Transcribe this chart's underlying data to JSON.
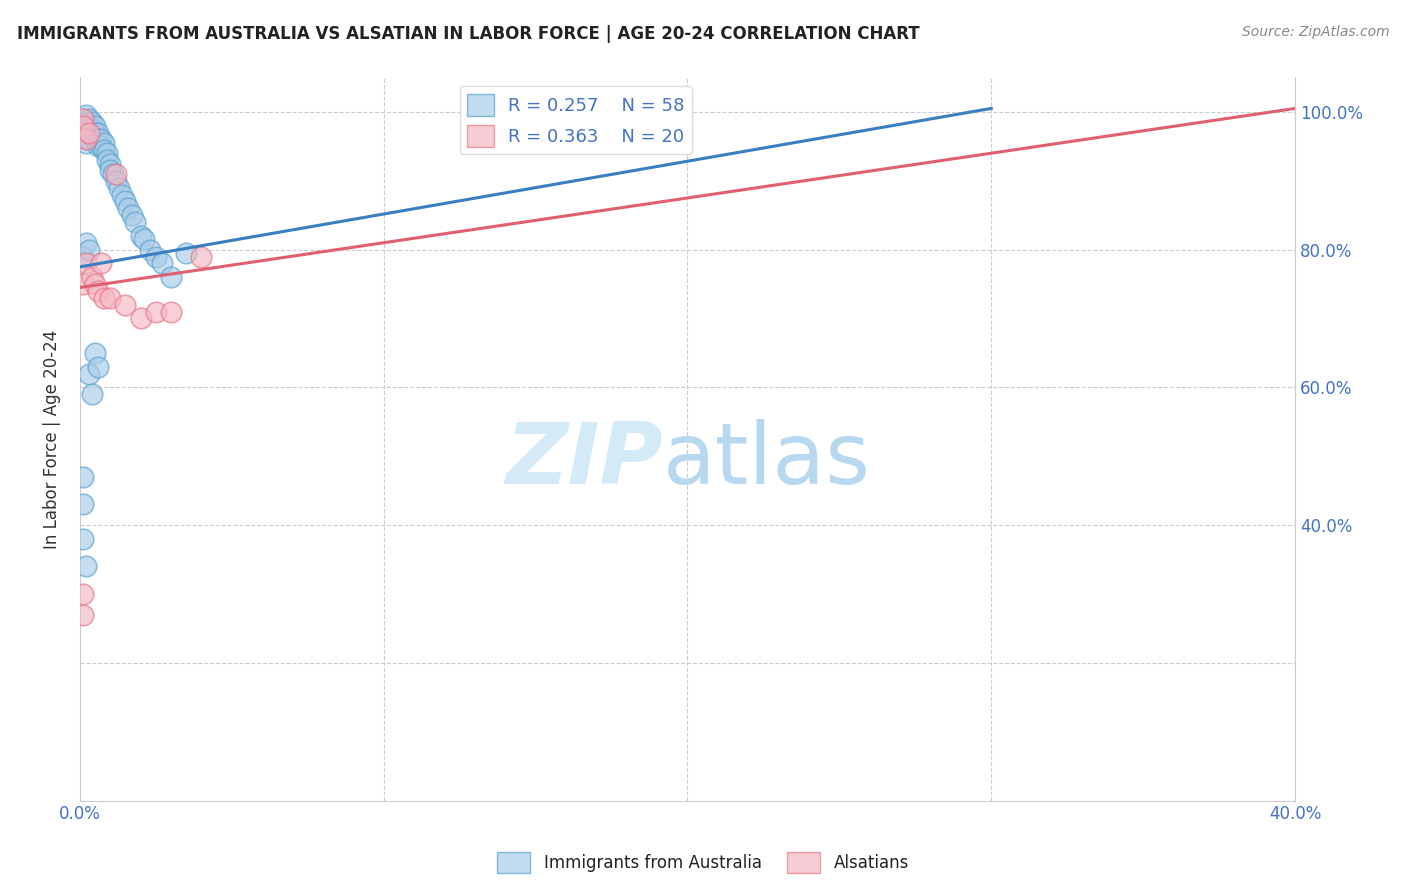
{
  "title": "IMMIGRANTS FROM AUSTRALIA VS ALSATIAN IN LABOR FORCE | AGE 20-24 CORRELATION CHART",
  "source": "Source: ZipAtlas.com",
  "ylabel_label": "In Labor Force | Age 20-24",
  "x_min": 0.0,
  "x_max": 0.4,
  "y_min": 0.0,
  "y_max": 1.05,
  "background_color": "#ffffff",
  "title_color": "#222222",
  "grid_color": "#cccccc",
  "blue_color": "#a8cce8",
  "pink_color": "#f4b8c4",
  "blue_edge_color": "#5ba3d0",
  "pink_edge_color": "#e8758a",
  "blue_line_color": "#3a7fc1",
  "pink_line_color": "#e06070",
  "legend_R1": "R = 0.257",
  "legend_N1": "N = 58",
  "legend_R2": "R = 0.363",
  "legend_N2": "N = 20",
  "legend_label1": "Immigrants from Australia",
  "legend_label2": "Alsatians",
  "blue_line_x0": 0.0,
  "blue_line_y0": 0.775,
  "blue_line_x1": 0.3,
  "blue_line_y1": 1.005,
  "pink_line_x0": 0.0,
  "pink_line_y0": 0.745,
  "pink_line_x1": 0.4,
  "pink_line_y1": 1.005,
  "blue_scatter_x": [
    0.001,
    0.001,
    0.001,
    0.001,
    0.001,
    0.001,
    0.002,
    0.002,
    0.002,
    0.002,
    0.002,
    0.003,
    0.003,
    0.003,
    0.003,
    0.004,
    0.004,
    0.004,
    0.005,
    0.005,
    0.005,
    0.006,
    0.006,
    0.006,
    0.007,
    0.007,
    0.008,
    0.008,
    0.009,
    0.009,
    0.01,
    0.01,
    0.011,
    0.012,
    0.013,
    0.014,
    0.015,
    0.016,
    0.017,
    0.018,
    0.02,
    0.021,
    0.023,
    0.025,
    0.027,
    0.03,
    0.035,
    0.001,
    0.001,
    0.001,
    0.002,
    0.003,
    0.004,
    0.005,
    0.006,
    0.001,
    0.002,
    0.003
  ],
  "blue_scatter_y": [
    0.99,
    0.985,
    0.98,
    0.975,
    0.97,
    0.965,
    0.995,
    0.985,
    0.975,
    0.965,
    0.955,
    0.99,
    0.98,
    0.97,
    0.96,
    0.985,
    0.975,
    0.965,
    0.98,
    0.97,
    0.96,
    0.97,
    0.96,
    0.95,
    0.96,
    0.95,
    0.955,
    0.945,
    0.94,
    0.93,
    0.925,
    0.915,
    0.91,
    0.9,
    0.89,
    0.88,
    0.87,
    0.86,
    0.85,
    0.84,
    0.82,
    0.815,
    0.8,
    0.79,
    0.78,
    0.76,
    0.795,
    0.47,
    0.43,
    0.38,
    0.34,
    0.62,
    0.59,
    0.65,
    0.63,
    0.79,
    0.81,
    0.8
  ],
  "pink_scatter_x": [
    0.001,
    0.001,
    0.001,
    0.002,
    0.002,
    0.003,
    0.004,
    0.005,
    0.006,
    0.007,
    0.008,
    0.01,
    0.012,
    0.015,
    0.02,
    0.025,
    0.03,
    0.04,
    0.001,
    0.001
  ],
  "pink_scatter_y": [
    0.99,
    0.98,
    0.75,
    0.96,
    0.78,
    0.97,
    0.76,
    0.75,
    0.74,
    0.78,
    0.73,
    0.73,
    0.91,
    0.72,
    0.7,
    0.71,
    0.71,
    0.79,
    0.27,
    0.3
  ]
}
